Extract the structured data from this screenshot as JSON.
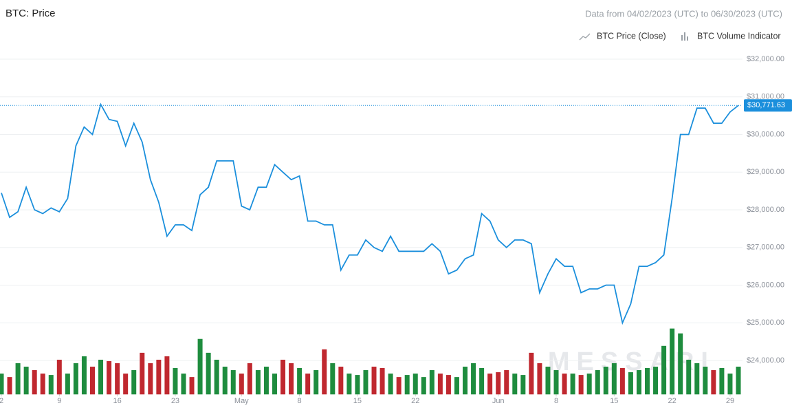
{
  "chart_data": {
    "type": "line",
    "title": "BTC: Price",
    "subtitle": "Data from 04/02/2023 (UTC) to 06/30/2023 (UTC)",
    "watermark": "MESSARI",
    "x": [
      "04/02/2023",
      "04/03/2023",
      "04/04/2023",
      "04/05/2023",
      "04/06/2023",
      "04/07/2023",
      "04/08/2023",
      "04/09/2023",
      "04/10/2023",
      "04/11/2023",
      "04/12/2023",
      "04/13/2023",
      "04/14/2023",
      "04/15/2023",
      "04/16/2023",
      "04/17/2023",
      "04/18/2023",
      "04/19/2023",
      "04/20/2023",
      "04/21/2023",
      "04/22/2023",
      "04/23/2023",
      "04/24/2023",
      "04/25/2023",
      "04/26/2023",
      "04/27/2023",
      "04/28/2023",
      "04/29/2023",
      "04/30/2023",
      "05/01/2023",
      "05/02/2023",
      "05/03/2023",
      "05/04/2023",
      "05/05/2023",
      "05/06/2023",
      "05/07/2023",
      "05/08/2023",
      "05/09/2023",
      "05/10/2023",
      "05/11/2023",
      "05/12/2023",
      "05/13/2023",
      "05/14/2023",
      "05/15/2023",
      "05/16/2023",
      "05/17/2023",
      "05/18/2023",
      "05/19/2023",
      "05/20/2023",
      "05/21/2023",
      "05/22/2023",
      "05/23/2023",
      "05/24/2023",
      "05/25/2023",
      "05/26/2023",
      "05/27/2023",
      "05/28/2023",
      "05/29/2023",
      "05/30/2023",
      "05/31/2023",
      "06/01/2023",
      "06/02/2023",
      "06/03/2023",
      "06/04/2023",
      "06/05/2023",
      "06/06/2023",
      "06/07/2023",
      "06/08/2023",
      "06/09/2023",
      "06/10/2023",
      "06/11/2023",
      "06/12/2023",
      "06/13/2023",
      "06/14/2023",
      "06/15/2023",
      "06/16/2023",
      "06/17/2023",
      "06/18/2023",
      "06/19/2023",
      "06/20/2023",
      "06/21/2023",
      "06/22/2023",
      "06/23/2023",
      "06/24/2023",
      "06/25/2023",
      "06/26/2023",
      "06/27/2023",
      "06/28/2023",
      "06/29/2023",
      "06/30/2023"
    ],
    "series": [
      {
        "name": "BTC Price (Close)",
        "color": "#1b8fdc",
        "values": [
          28450,
          27800,
          27950,
          28600,
          28000,
          27900,
          28050,
          27950,
          28300,
          29700,
          30200,
          30000,
          30800,
          30400,
          30350,
          29700,
          30300,
          29800,
          28800,
          28200,
          27300,
          27600,
          27600,
          27450,
          28400,
          28600,
          29300,
          29300,
          29300,
          28100,
          28000,
          28600,
          28600,
          29200,
          29000,
          28800,
          28900,
          27700,
          27700,
          27600,
          27600,
          26400,
          26800,
          26800,
          27200,
          27000,
          26900,
          27300,
          26900,
          26900,
          26900,
          26900,
          27100,
          26900,
          26300,
          26400,
          26700,
          26800,
          27900,
          27700,
          27200,
          27000,
          27200,
          27200,
          27100,
          25800,
          26300,
          26700,
          26500,
          26500,
          25800,
          25900,
          25900,
          26000,
          26000,
          25000,
          25500,
          26500,
          26500,
          26600,
          26800,
          28300,
          30000,
          30000,
          30700,
          30700,
          30300,
          30300,
          30600,
          30771.63
        ]
      },
      {
        "name": "BTC Volume Indicator",
        "axis": "y2",
        "up_color": "#1e8c3e",
        "down_color": "#c0282f",
        "values": [
          30,
          25,
          45,
          40,
          35,
          30,
          28,
          50,
          30,
          45,
          55,
          40,
          50,
          48,
          45,
          30,
          35,
          60,
          45,
          50,
          55,
          38,
          30,
          25,
          80,
          60,
          50,
          40,
          35,
          30,
          45,
          35,
          40,
          30,
          50,
          45,
          38,
          30,
          35,
          65,
          45,
          40,
          30,
          28,
          35,
          40,
          38,
          30,
          25,
          28,
          30,
          25,
          35,
          30,
          28,
          25,
          40,
          45,
          38,
          30,
          32,
          35,
          30,
          28,
          60,
          45,
          40,
          35,
          30,
          30,
          28,
          30,
          35,
          40,
          45,
          38,
          32,
          35,
          38,
          40,
          70,
          95,
          88,
          50,
          45,
          40,
          35,
          38,
          30,
          40
        ]
      }
    ],
    "last_price": {
      "value": 30771.63,
      "label": "$30,771.63"
    },
    "ylim": [
      23100,
      32300
    ],
    "yticks": [
      {
        "value": 24000,
        "label": "$24,000.00"
      },
      {
        "value": 25000,
        "label": "$25,000.00"
      },
      {
        "value": 26000,
        "label": "$26,000.00"
      },
      {
        "value": 27000,
        "label": "$27,000.00"
      },
      {
        "value": 28000,
        "label": "$28,000.00"
      },
      {
        "value": 29000,
        "label": "$29,000.00"
      },
      {
        "value": 30000,
        "label": "$30,000.00"
      },
      {
        "value": 31000,
        "label": "$31,000.00"
      },
      {
        "value": 32000,
        "label": "$32,000.00"
      }
    ],
    "y2lim": [
      0,
      500
    ],
    "xticks": [
      {
        "value": "04/02/2023",
        "label": "2"
      },
      {
        "value": "04/09/2023",
        "label": "9"
      },
      {
        "value": "04/16/2023",
        "label": "16"
      },
      {
        "value": "04/23/2023",
        "label": "23"
      },
      {
        "value": "05/01/2023",
        "label": "May"
      },
      {
        "value": "05/08/2023",
        "label": "8"
      },
      {
        "value": "05/15/2023",
        "label": "15"
      },
      {
        "value": "05/22/2023",
        "label": "22"
      },
      {
        "value": "06/01/2023",
        "label": "Jun"
      },
      {
        "value": "06/08/2023",
        "label": "8"
      },
      {
        "value": "06/15/2023",
        "label": "15"
      },
      {
        "value": "06/22/2023",
        "label": "22"
      },
      {
        "value": "06/29/2023",
        "label": "29"
      }
    ],
    "grid": true
  }
}
